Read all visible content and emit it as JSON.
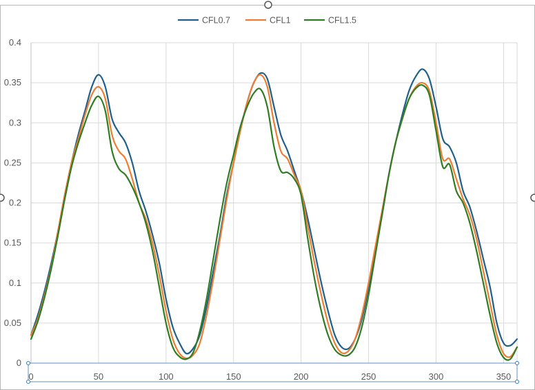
{
  "chart_data": {
    "type": "line",
    "title": "",
    "xlabel": "",
    "ylabel": "",
    "xlim": [
      0,
      360
    ],
    "ylim": [
      0,
      0.4
    ],
    "x_ticks": [
      0,
      50,
      100,
      150,
      200,
      250,
      300,
      350
    ],
    "x_tick_labels": [
      "0",
      "50",
      "100",
      "150",
      "200",
      "250",
      "300",
      "350"
    ],
    "y_ticks": [
      0,
      0.05,
      0.1,
      0.15,
      0.2,
      0.25,
      0.3,
      0.35,
      0.4
    ],
    "y_tick_labels": [
      "0",
      "0.05",
      "0.1",
      "0.15",
      "0.2",
      "0.25",
      "0.3",
      "0.35",
      "0.4"
    ],
    "grid": true,
    "legend_position": "top",
    "series": [
      {
        "name": "CFL0.7",
        "color": "#1f5f8b",
        "points": [
          [
            0,
            0.035
          ],
          [
            5,
            0.06
          ],
          [
            10,
            0.09
          ],
          [
            15,
            0.125
          ],
          [
            20,
            0.165
          ],
          [
            25,
            0.21
          ],
          [
            30,
            0.25
          ],
          [
            35,
            0.285
          ],
          [
            40,
            0.315
          ],
          [
            45,
            0.345
          ],
          [
            50,
            0.36
          ],
          [
            55,
            0.345
          ],
          [
            60,
            0.305
          ],
          [
            65,
            0.288
          ],
          [
            70,
            0.275
          ],
          [
            75,
            0.25
          ],
          [
            80,
            0.215
          ],
          [
            85,
            0.19
          ],
          [
            90,
            0.16
          ],
          [
            95,
            0.125
          ],
          [
            100,
            0.08
          ],
          [
            105,
            0.045
          ],
          [
            110,
            0.025
          ],
          [
            115,
            0.012
          ],
          [
            120,
            0.018
          ],
          [
            125,
            0.035
          ],
          [
            130,
            0.07
          ],
          [
            135,
            0.115
          ],
          [
            140,
            0.16
          ],
          [
            145,
            0.21
          ],
          [
            150,
            0.25
          ],
          [
            155,
            0.29
          ],
          [
            160,
            0.325
          ],
          [
            165,
            0.35
          ],
          [
            170,
            0.362
          ],
          [
            175,
            0.355
          ],
          [
            180,
            0.32
          ],
          [
            185,
            0.285
          ],
          [
            190,
            0.265
          ],
          [
            195,
            0.24
          ],
          [
            200,
            0.215
          ],
          [
            205,
            0.18
          ],
          [
            210,
            0.14
          ],
          [
            215,
            0.1
          ],
          [
            220,
            0.065
          ],
          [
            225,
            0.035
          ],
          [
            230,
            0.02
          ],
          [
            235,
            0.018
          ],
          [
            240,
            0.03
          ],
          [
            245,
            0.055
          ],
          [
            250,
            0.095
          ],
          [
            255,
            0.14
          ],
          [
            260,
            0.185
          ],
          [
            265,
            0.235
          ],
          [
            270,
            0.275
          ],
          [
            275,
            0.31
          ],
          [
            280,
            0.34
          ],
          [
            285,
            0.358
          ],
          [
            290,
            0.367
          ],
          [
            295,
            0.355
          ],
          [
            300,
            0.32
          ],
          [
            305,
            0.28
          ],
          [
            310,
            0.27
          ],
          [
            315,
            0.25
          ],
          [
            320,
            0.215
          ],
          [
            325,
            0.195
          ],
          [
            330,
            0.165
          ],
          [
            335,
            0.13
          ],
          [
            340,
            0.095
          ],
          [
            345,
            0.05
          ],
          [
            350,
            0.025
          ],
          [
            355,
            0.022
          ],
          [
            360,
            0.03
          ]
        ]
      },
      {
        "name": "CFL1",
        "color": "#ed7d31",
        "points": [
          [
            0,
            0.035
          ],
          [
            5,
            0.055
          ],
          [
            10,
            0.085
          ],
          [
            15,
            0.12
          ],
          [
            20,
            0.165
          ],
          [
            25,
            0.21
          ],
          [
            30,
            0.25
          ],
          [
            35,
            0.28
          ],
          [
            40,
            0.31
          ],
          [
            45,
            0.335
          ],
          [
            50,
            0.345
          ],
          [
            55,
            0.33
          ],
          [
            60,
            0.285
          ],
          [
            65,
            0.265
          ],
          [
            70,
            0.255
          ],
          [
            75,
            0.23
          ],
          [
            80,
            0.2
          ],
          [
            85,
            0.18
          ],
          [
            90,
            0.15
          ],
          [
            95,
            0.11
          ],
          [
            100,
            0.065
          ],
          [
            105,
            0.03
          ],
          [
            110,
            0.012
          ],
          [
            115,
            0.006
          ],
          [
            120,
            0.01
          ],
          [
            125,
            0.025
          ],
          [
            130,
            0.06
          ],
          [
            135,
            0.105
          ],
          [
            140,
            0.155
          ],
          [
            145,
            0.205
          ],
          [
            150,
            0.25
          ],
          [
            155,
            0.29
          ],
          [
            160,
            0.325
          ],
          [
            165,
            0.35
          ],
          [
            170,
            0.36
          ],
          [
            175,
            0.345
          ],
          [
            180,
            0.3
          ],
          [
            185,
            0.265
          ],
          [
            190,
            0.255
          ],
          [
            195,
            0.235
          ],
          [
            200,
            0.215
          ],
          [
            205,
            0.17
          ],
          [
            210,
            0.125
          ],
          [
            215,
            0.085
          ],
          [
            220,
            0.05
          ],
          [
            225,
            0.025
          ],
          [
            230,
            0.013
          ],
          [
            235,
            0.015
          ],
          [
            240,
            0.03
          ],
          [
            245,
            0.06
          ],
          [
            250,
            0.1
          ],
          [
            255,
            0.145
          ],
          [
            260,
            0.19
          ],
          [
            265,
            0.235
          ],
          [
            270,
            0.275
          ],
          [
            275,
            0.305
          ],
          [
            280,
            0.33
          ],
          [
            285,
            0.345
          ],
          [
            290,
            0.35
          ],
          [
            295,
            0.34
          ],
          [
            300,
            0.3
          ],
          [
            305,
            0.255
          ],
          [
            310,
            0.255
          ],
          [
            315,
            0.23
          ],
          [
            320,
            0.205
          ],
          [
            325,
            0.185
          ],
          [
            330,
            0.155
          ],
          [
            335,
            0.115
          ],
          [
            340,
            0.075
          ],
          [
            345,
            0.035
          ],
          [
            350,
            0.012
          ],
          [
            355,
            0.008
          ],
          [
            360,
            0.02
          ]
        ]
      },
      {
        "name": "CFL1.5",
        "color": "#2e7d22",
        "points": [
          [
            0,
            0.03
          ],
          [
            5,
            0.052
          ],
          [
            10,
            0.082
          ],
          [
            15,
            0.118
          ],
          [
            20,
            0.16
          ],
          [
            25,
            0.205
          ],
          [
            30,
            0.245
          ],
          [
            35,
            0.275
          ],
          [
            40,
            0.3
          ],
          [
            45,
            0.322
          ],
          [
            50,
            0.333
          ],
          [
            55,
            0.315
          ],
          [
            60,
            0.265
          ],
          [
            65,
            0.243
          ],
          [
            70,
            0.235
          ],
          [
            75,
            0.22
          ],
          [
            80,
            0.2
          ],
          [
            85,
            0.175
          ],
          [
            90,
            0.14
          ],
          [
            95,
            0.095
          ],
          [
            100,
            0.05
          ],
          [
            105,
            0.02
          ],
          [
            110,
            0.008
          ],
          [
            115,
            0.005
          ],
          [
            120,
            0.013
          ],
          [
            125,
            0.04
          ],
          [
            130,
            0.08
          ],
          [
            135,
            0.13
          ],
          [
            140,
            0.18
          ],
          [
            145,
            0.225
          ],
          [
            150,
            0.26
          ],
          [
            155,
            0.295
          ],
          [
            160,
            0.32
          ],
          [
            165,
            0.337
          ],
          [
            170,
            0.342
          ],
          [
            175,
            0.32
          ],
          [
            180,
            0.27
          ],
          [
            185,
            0.24
          ],
          [
            190,
            0.238
          ],
          [
            195,
            0.23
          ],
          [
            200,
            0.21
          ],
          [
            205,
            0.155
          ],
          [
            210,
            0.105
          ],
          [
            215,
            0.065
          ],
          [
            220,
            0.035
          ],
          [
            225,
            0.017
          ],
          [
            230,
            0.01
          ],
          [
            235,
            0.01
          ],
          [
            240,
            0.02
          ],
          [
            245,
            0.045
          ],
          [
            250,
            0.085
          ],
          [
            255,
            0.135
          ],
          [
            260,
            0.185
          ],
          [
            265,
            0.235
          ],
          [
            270,
            0.275
          ],
          [
            275,
            0.305
          ],
          [
            280,
            0.33
          ],
          [
            285,
            0.343
          ],
          [
            290,
            0.347
          ],
          [
            295,
            0.335
          ],
          [
            300,
            0.29
          ],
          [
            305,
            0.245
          ],
          [
            310,
            0.248
          ],
          [
            315,
            0.215
          ],
          [
            320,
            0.2
          ],
          [
            325,
            0.175
          ],
          [
            330,
            0.14
          ],
          [
            335,
            0.1
          ],
          [
            340,
            0.06
          ],
          [
            345,
            0.025
          ],
          [
            350,
            0.007
          ],
          [
            355,
            0.005
          ],
          [
            360,
            0.02
          ]
        ]
      }
    ]
  }
}
